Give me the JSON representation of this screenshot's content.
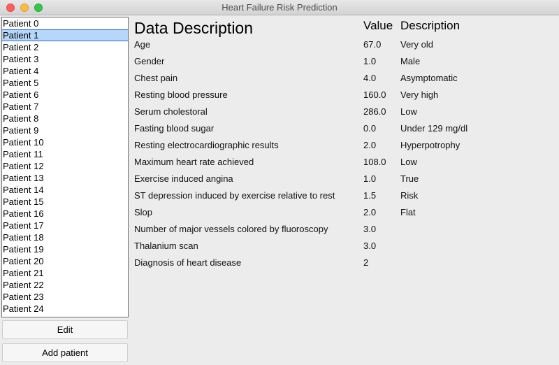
{
  "window": {
    "title": "Heart Failure Risk Prediction"
  },
  "patients": {
    "selected_index": 1,
    "items": [
      "Patient 0",
      "Patient 1",
      "Patient 2",
      "Patient 3",
      "Patient 4",
      "Patient 5",
      "Patient 6",
      "Patient 7",
      "Patient 8",
      "Patient 9",
      "Patient 10",
      "Patient 11",
      "Patient 12",
      "Patient 13",
      "Patient 14",
      "Patient 15",
      "Patient 16",
      "Patient 17",
      "Patient 18",
      "Patient 19",
      "Patient 20",
      "Patient 21",
      "Patient 22",
      "Patient 23",
      "Patient 24"
    ]
  },
  "buttons": {
    "edit_label": "Edit",
    "add_label": "Add patient"
  },
  "table": {
    "heading": "Data Description",
    "value_header": "Value",
    "description_header": "Description",
    "rows": [
      {
        "label": "Age",
        "value": "67.0",
        "description": "Very old"
      },
      {
        "label": "Gender",
        "value": "1.0",
        "description": "Male"
      },
      {
        "label": "Chest pain",
        "value": "4.0",
        "description": "Asymptomatic"
      },
      {
        "label": "Resting blood pressure",
        "value": "160.0",
        "description": "Very high"
      },
      {
        "label": "Serum cholestoral",
        "value": "286.0",
        "description": "Low"
      },
      {
        "label": "Fasting blood sugar",
        "value": "0.0",
        "description": "Under 129 mg/dl"
      },
      {
        "label": "Resting electrocardiographic results",
        "value": "2.0",
        "description": "Hyperpotrophy"
      },
      {
        "label": "Maximum heart rate achieved",
        "value": "108.0",
        "description": "Low"
      },
      {
        "label": "Exercise induced angina",
        "value": "1.0",
        "description": "True"
      },
      {
        "label": "ST depression induced by exercise relative to rest",
        "value": "1.5",
        "description": "Risk"
      },
      {
        "label": "Slop",
        "value": "2.0",
        "description": "Flat"
      },
      {
        "label": "Number of major vessels colored by fluoroscopy",
        "value": "3.0",
        "description": ""
      },
      {
        "label": "Thalanium scan",
        "value": "3.0",
        "description": ""
      },
      {
        "label": "Diagnosis of heart disease",
        "value": "2",
        "description": ""
      }
    ]
  }
}
